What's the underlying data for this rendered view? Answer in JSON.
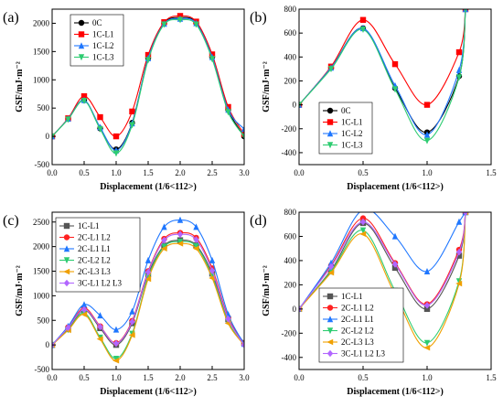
{
  "figure": {
    "chart_data": [
      {
        "panel_label": "(a)",
        "type": "line",
        "xlabel": "Displacement (1/6<112>)",
        "ylabel": "GSF/mJ·m⁻²",
        "xlim": [
          0,
          3.0
        ],
        "ylim": [
          -500,
          2250
        ],
        "xticks": [
          0,
          0.5,
          1.0,
          1.5,
          2.0,
          2.5,
          3.0
        ],
        "xtick_labels": [
          "0.0",
          "0.5",
          "1.0",
          "1.5",
          "2.0",
          "2.5",
          "3.0"
        ],
        "yticks": [
          -500,
          0,
          500,
          1000,
          1500,
          2000
        ],
        "ytick_labels": [
          "-500",
          "0",
          "500",
          "1000",
          "1500",
          "2000"
        ],
        "legend_position": "top-left",
        "x": [
          0,
          0.25,
          0.5,
          0.75,
          1.0,
          1.25,
          1.5,
          1.75,
          2.0,
          2.25,
          2.5,
          2.75,
          3.0
        ],
        "series": [
          {
            "name": "0C",
            "color": "#000000",
            "marker": "circle",
            "values": [
              0,
              310,
              640,
              140,
              -230,
              240,
              1380,
              2000,
              2100,
              2010,
              1400,
              470,
              0
            ]
          },
          {
            "name": "1C-L1",
            "color": "#ff0000",
            "marker": "square",
            "values": [
              0,
              320,
              710,
              340,
              0,
              440,
              1440,
              2020,
              2130,
              2030,
              1450,
              520,
              40
            ]
          },
          {
            "name": "1C-L2",
            "color": "#1f77ff",
            "marker": "triangle-up",
            "values": [
              0,
              310,
              640,
              160,
              -250,
              230,
              1380,
              1990,
              2080,
              2000,
              1400,
              470,
              130
            ]
          },
          {
            "name": "1C-L3",
            "color": "#2ecc71",
            "marker": "triangle-down",
            "values": [
              0,
              300,
              630,
              130,
              -300,
              200,
              1350,
              1980,
              2060,
              1980,
              1370,
              430,
              0
            ]
          }
        ]
      },
      {
        "panel_label": "(b)",
        "type": "line",
        "xlabel": "Displacement (1/6<112>)",
        "ylabel": "GSF/mJ·m⁻²",
        "xlim": [
          0,
          1.5
        ],
        "ylim": [
          -500,
          800
        ],
        "xticks": [
          0,
          0.5,
          1.0,
          1.5
        ],
        "xtick_labels": [
          "0.0",
          "0.5",
          "1.0",
          "1.5"
        ],
        "yticks": [
          -400,
          -200,
          0,
          200,
          400,
          600,
          800
        ],
        "ytick_labels": [
          "-400",
          "-200",
          "0",
          "200",
          "400",
          "600",
          "800"
        ],
        "legend_position": "bottom-left",
        "x": [
          0,
          0.25,
          0.5,
          0.75,
          1.0,
          1.25,
          1.3
        ],
        "series": [
          {
            "name": "0C",
            "color": "#000000",
            "marker": "circle",
            "values": [
              0,
              310,
              640,
              140,
              -230,
              240,
              800
            ]
          },
          {
            "name": "1C-L1",
            "color": "#ff0000",
            "marker": "square",
            "values": [
              0,
              320,
              710,
              340,
              0,
              440,
              800
            ]
          },
          {
            "name": "1C-L2",
            "color": "#1f77ff",
            "marker": "triangle-up",
            "values": [
              0,
              310,
              640,
              160,
              -250,
              290,
              800
            ]
          },
          {
            "name": "1C-L3",
            "color": "#2ecc71",
            "marker": "triangle-down",
            "values": [
              0,
              300,
              630,
              130,
              -300,
              230,
              800
            ]
          }
        ]
      },
      {
        "panel_label": "(c)",
        "type": "line",
        "xlabel": "Displacement (1/6<112>)",
        "ylabel": "GSF/mJ·m⁻²",
        "xlim": [
          0,
          3.0
        ],
        "ylim": [
          -500,
          2700
        ],
        "xticks": [
          0,
          0.5,
          1.0,
          1.5,
          2.0,
          2.5,
          3.0
        ],
        "xtick_labels": [
          "0.0",
          "0.5",
          "1.0",
          "1.5",
          "2.0",
          "2.5",
          "3.0"
        ],
        "yticks": [
          -500,
          0,
          500,
          1000,
          1500,
          2000,
          2500
        ],
        "ytick_labels": [
          "-500",
          "0",
          "500",
          "1000",
          "1500",
          "2000",
          "2500"
        ],
        "legend_position": "top-left",
        "x": [
          0,
          0.25,
          0.5,
          0.75,
          1.0,
          1.25,
          1.5,
          1.75,
          2.0,
          2.25,
          2.5,
          2.75,
          3.0
        ],
        "series": [
          {
            "name": "1C-L1",
            "color": "#555555",
            "marker": "square",
            "values": [
              0,
              320,
              710,
              340,
              0,
              440,
              1440,
              2020,
              2130,
              2030,
              1450,
              520,
              40
            ]
          },
          {
            "name": "2C-L1 L2",
            "color": "#ff2222",
            "marker": "circle",
            "values": [
              0,
              360,
              750,
              380,
              40,
              490,
              1500,
              2160,
              2280,
              2180,
              1560,
              560,
              30
            ]
          },
          {
            "name": "2C-L1 L1",
            "color": "#1f77ff",
            "marker": "triangle-up",
            "values": [
              0,
              380,
              820,
              600,
              310,
              680,
              1720,
              2400,
              2540,
              2400,
              1720,
              620,
              20
            ]
          },
          {
            "name": "2C-L2 L2",
            "color": "#2ecc71",
            "marker": "triangle-down",
            "values": [
              0,
              310,
              650,
              150,
              -280,
              230,
              1380,
              2000,
              2100,
              2010,
              1400,
              470,
              0
            ]
          },
          {
            "name": "2C-L3 L3",
            "color": "#f0a000",
            "marker": "triangle-left",
            "values": [
              0,
              300,
              620,
              120,
              -320,
              200,
              1340,
              1960,
              2060,
              1960,
              1360,
              440,
              0
            ]
          },
          {
            "name": "3C-L1 L2 L3",
            "color": "#b266ff",
            "marker": "diamond",
            "values": [
              0,
              350,
              720,
              370,
              30,
              470,
              1480,
              2130,
              2250,
              2140,
              1510,
              530,
              0
            ]
          }
        ]
      },
      {
        "panel_label": "(d)",
        "type": "line",
        "xlabel": "Displacement (1/6<112>)",
        "ylabel": "GSF/mJ·m⁻²",
        "xlim": [
          0,
          1.5
        ],
        "ylim": [
          -500,
          800
        ],
        "xticks": [
          0,
          0.5,
          1.0,
          1.5
        ],
        "xtick_labels": [
          "0.0",
          "0.5",
          "1.0",
          "1.5"
        ],
        "yticks": [
          -400,
          -200,
          0,
          200,
          400,
          600,
          800
        ],
        "ytick_labels": [
          "-400",
          "-200",
          "0",
          "200",
          "400",
          "600",
          "800"
        ],
        "legend_position": "bottom-left",
        "x": [
          0,
          0.25,
          0.5,
          0.75,
          1.0,
          1.25,
          1.3
        ],
        "series": [
          {
            "name": "1C-L1",
            "color": "#555555",
            "marker": "square",
            "values": [
              0,
              320,
              710,
              340,
              0,
              440,
              800
            ]
          },
          {
            "name": "2C-L1 L2",
            "color": "#ff2222",
            "marker": "circle",
            "values": [
              0,
              360,
              750,
              380,
              40,
              490,
              800
            ]
          },
          {
            "name": "2C-L1 L1",
            "color": "#1f77ff",
            "marker": "triangle-up",
            "values": [
              0,
              380,
              820,
              600,
              310,
              720,
              800
            ]
          },
          {
            "name": "2C-L2 L2",
            "color": "#2ecc71",
            "marker": "triangle-down",
            "values": [
              0,
              310,
              650,
              150,
              -280,
              230,
              800
            ]
          },
          {
            "name": "2C-L3 L3",
            "color": "#f0a000",
            "marker": "triangle-left",
            "values": [
              0,
              300,
              620,
              120,
              -320,
              210,
              800
            ]
          },
          {
            "name": "3C-L1 L2 L3",
            "color": "#b266ff",
            "marker": "diamond",
            "values": [
              0,
              350,
              720,
              370,
              30,
              470,
              800
            ]
          }
        ]
      }
    ]
  }
}
